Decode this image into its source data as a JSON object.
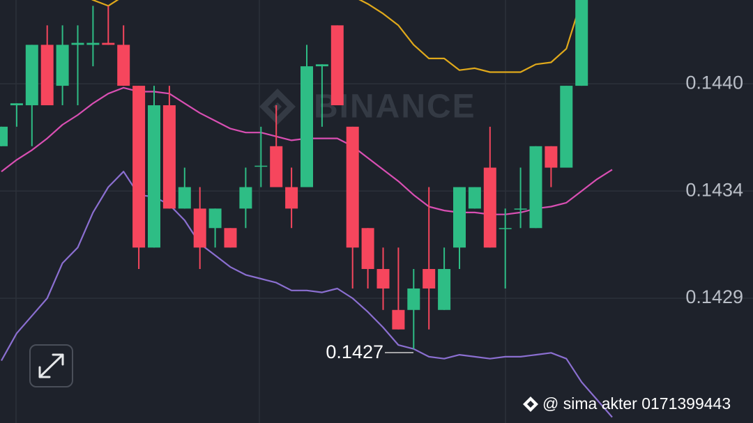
{
  "chart_data": {
    "type": "candlestick",
    "watermark": "BINANCE",
    "annotation": "0.1427",
    "credit": "@ sima akter 0171399443",
    "categories": [
      null,
      null,
      null,
      null,
      null,
      null,
      null,
      null,
      null,
      null,
      null,
      null,
      null,
      null,
      null,
      null,
      null,
      null,
      null,
      null,
      null,
      null,
      null,
      null,
      null,
      null,
      null,
      null,
      null,
      null,
      null,
      null,
      null,
      null,
      null,
      null,
      null,
      null,
      null,
      null,
      null
    ],
    "open": [
      0.14368,
      0.14389,
      0.14389,
      0.1442,
      0.14399,
      0.1442,
      0.1442,
      0.14421,
      0.1442,
      0.14399,
      0.14316,
      0.14389,
      0.14336,
      0.14336,
      0.14326,
      0.14326,
      0.14336,
      0.14358,
      0.14368,
      0.14347,
      0.14347,
      0.14409,
      0.1443,
      0.14378,
      0.14326,
      0.14305,
      0.14284,
      0.14284,
      0.14305,
      0.14284,
      0.14316,
      0.14336,
      0.14357,
      0.14326,
      0.14336,
      0.14326,
      0.14368,
      0.14357,
      0.14399,
      null,
      null
    ],
    "high": [
      0.14378,
      0.1439,
      0.1442,
      0.1443,
      0.1443,
      0.1443,
      0.1444,
      0.1444,
      0.1443,
      0.14399,
      0.14399,
      0.14399,
      0.14357,
      0.14347,
      0.14336,
      0.14326,
      0.14357,
      0.14378,
      0.14389,
      0.14357,
      0.1442,
      0.1441,
      0.1443,
      0.14378,
      0.14326,
      0.14316,
      0.14316,
      0.14305,
      0.14347,
      0.14316,
      0.14347,
      0.14347,
      0.14378,
      0.14336,
      0.14357,
      0.14368,
      0.14368,
      0.14399,
      0.14443,
      null,
      null
    ],
    "low": [
      0.14368,
      0.14378,
      0.14368,
      0.14389,
      0.14389,
      0.14389,
      0.14409,
      0.1442,
      0.14399,
      0.14305,
      0.14316,
      0.14336,
      0.14336,
      0.14305,
      0.14316,
      0.14316,
      0.14326,
      0.14347,
      0.14347,
      0.14326,
      0.14347,
      0.14378,
      0.14389,
      0.14295,
      0.14295,
      0.14284,
      0.14274,
      0.14264,
      0.14274,
      0.14284,
      0.14305,
      0.14336,
      0.14316,
      0.14295,
      0.14326,
      0.14326,
      0.14347,
      0.14357,
      0.14399,
      null,
      null
    ],
    "close": [
      0.14378,
      0.1439,
      0.1442,
      0.14389,
      0.1442,
      0.14421,
      0.14421,
      0.1442,
      0.14399,
      0.14316,
      0.14389,
      0.14336,
      0.14347,
      0.14316,
      0.14336,
      0.14316,
      0.14347,
      0.14358,
      0.14347,
      0.14336,
      0.14409,
      0.1441,
      0.14389,
      0.14316,
      0.14305,
      0.14295,
      0.14274,
      0.14295,
      0.14295,
      0.14305,
      0.14347,
      0.14347,
      0.14316,
      0.14326,
      0.14336,
      0.14368,
      0.14357,
      0.14399,
      0.14443,
      null,
      null
    ],
    "up_color": "#2ebd85",
    "down_color": "#f6465d",
    "lines": [
      {
        "color": "#e0a91b",
        "values": [
          null,
          null,
          null,
          null,
          null,
          0.14447,
          0.14443,
          0.1444,
          0.14445,
          null,
          null,
          null,
          null,
          null,
          null,
          null,
          null,
          null,
          null,
          null,
          null,
          null,
          null,
          0.14445,
          0.14441,
          0.14436,
          0.1443,
          0.1442,
          0.14413,
          0.14413,
          0.14407,
          0.14408,
          0.14406,
          0.14406,
          0.14406,
          0.1441,
          0.14411,
          0.14418,
          0.14443,
          null,
          null
        ]
      },
      {
        "color": "#d94fb3",
        "values": [
          0.14355,
          0.14361,
          0.14366,
          0.14372,
          0.14379,
          0.14384,
          0.1439,
          0.14395,
          0.14398,
          0.14396,
          0.14396,
          0.14395,
          0.1439,
          0.14385,
          0.14381,
          0.14377,
          0.14375,
          0.14375,
          0.14373,
          0.14371,
          0.14372,
          0.14372,
          0.14372,
          0.14368,
          0.14362,
          0.14356,
          0.1435,
          0.14343,
          0.14337,
          0.14335,
          0.14334,
          0.14334,
          0.14333,
          0.14333,
          0.14334,
          0.14336,
          0.14337,
          0.14339,
          0.14345,
          0.14351,
          0.14356
        ]
      },
      {
        "color": "#8b6fd1",
        "values": [
          0.14258,
          0.14272,
          0.14281,
          0.1429,
          0.14308,
          0.14316,
          0.14334,
          0.14347,
          0.14355,
          0.14343,
          0.14342,
          0.14338,
          0.1433,
          0.14318,
          0.14312,
          0.14306,
          0.14302,
          0.143,
          0.14298,
          0.14294,
          0.14294,
          0.14293,
          0.14295,
          0.1429,
          0.14283,
          0.14275,
          0.14266,
          0.14264,
          0.1426,
          0.14259,
          0.14261,
          0.1426,
          0.14259,
          0.1426,
          0.1426,
          0.14261,
          0.14262,
          0.14259,
          0.14247,
          0.14238,
          0.14229
        ]
      }
    ],
    "ylim": [
      0.14226,
      0.14443
    ],
    "yticks": [
      {
        "value": 0.144,
        "label": "0.1440"
      },
      {
        "value": 0.14345,
        "label": "0.1434"
      },
      {
        "value": 0.1429,
        "label": "0.1429"
      }
    ],
    "grid": true
  }
}
